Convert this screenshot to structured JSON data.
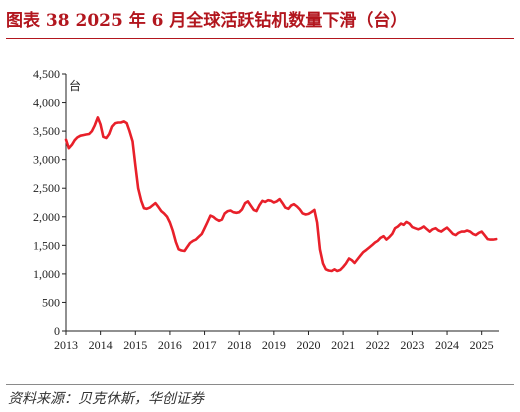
{
  "header": {
    "title": "图表 38   2025 年 6 月全球活跃钻机数量下滑（台）",
    "title_color": "#b2161e"
  },
  "footer": {
    "source": "资料来源：贝克休斯，华创证券"
  },
  "chart_data": {
    "type": "line",
    "unit_label": "台",
    "line_color": "#e8202a",
    "ylim": [
      0,
      4500
    ],
    "yticks": [
      "0",
      "500",
      "1,000",
      "1,500",
      "2,000",
      "2,500",
      "3,000",
      "3,500",
      "4,000",
      "4,500"
    ],
    "xlim": [
      2013,
      2025.5
    ],
    "xticks": [
      "2013",
      "2014",
      "2015",
      "2016",
      "2017",
      "2018",
      "2019",
      "2020",
      "2021",
      "2022",
      "2023",
      "2024",
      "2025"
    ],
    "grid": false,
    "series": [
      {
        "values": [
          [
            2013.0,
            3350
          ],
          [
            2013.08,
            3200
          ],
          [
            2013.17,
            3260
          ],
          [
            2013.25,
            3340
          ],
          [
            2013.33,
            3390
          ],
          [
            2013.42,
            3420
          ],
          [
            2013.5,
            3430
          ],
          [
            2013.58,
            3440
          ],
          [
            2013.67,
            3450
          ],
          [
            2013.75,
            3500
          ],
          [
            2013.83,
            3600
          ],
          [
            2013.92,
            3740
          ],
          [
            2014.0,
            3620
          ],
          [
            2014.08,
            3400
          ],
          [
            2014.17,
            3380
          ],
          [
            2014.25,
            3450
          ],
          [
            2014.33,
            3580
          ],
          [
            2014.42,
            3640
          ],
          [
            2014.5,
            3650
          ],
          [
            2014.58,
            3650
          ],
          [
            2014.67,
            3670
          ],
          [
            2014.75,
            3640
          ],
          [
            2014.83,
            3500
          ],
          [
            2014.92,
            3320
          ],
          [
            2015.0,
            2900
          ],
          [
            2015.08,
            2500
          ],
          [
            2015.17,
            2280
          ],
          [
            2015.25,
            2150
          ],
          [
            2015.33,
            2140
          ],
          [
            2015.42,
            2160
          ],
          [
            2015.5,
            2200
          ],
          [
            2015.58,
            2240
          ],
          [
            2015.67,
            2170
          ],
          [
            2015.75,
            2100
          ],
          [
            2015.83,
            2060
          ],
          [
            2015.92,
            2000
          ],
          [
            2016.0,
            1900
          ],
          [
            2016.08,
            1760
          ],
          [
            2016.17,
            1560
          ],
          [
            2016.25,
            1430
          ],
          [
            2016.33,
            1410
          ],
          [
            2016.42,
            1400
          ],
          [
            2016.5,
            1470
          ],
          [
            2016.58,
            1540
          ],
          [
            2016.67,
            1580
          ],
          [
            2016.75,
            1600
          ],
          [
            2016.83,
            1650
          ],
          [
            2016.92,
            1700
          ],
          [
            2017.0,
            1800
          ],
          [
            2017.08,
            1900
          ],
          [
            2017.17,
            2020
          ],
          [
            2017.25,
            2000
          ],
          [
            2017.33,
            1960
          ],
          [
            2017.42,
            1930
          ],
          [
            2017.5,
            1950
          ],
          [
            2017.58,
            2060
          ],
          [
            2017.67,
            2100
          ],
          [
            2017.75,
            2110
          ],
          [
            2017.83,
            2080
          ],
          [
            2017.92,
            2070
          ],
          [
            2018.0,
            2080
          ],
          [
            2018.08,
            2130
          ],
          [
            2018.17,
            2240
          ],
          [
            2018.25,
            2270
          ],
          [
            2018.33,
            2200
          ],
          [
            2018.42,
            2120
          ],
          [
            2018.5,
            2100
          ],
          [
            2018.58,
            2200
          ],
          [
            2018.67,
            2280
          ],
          [
            2018.75,
            2260
          ],
          [
            2018.83,
            2290
          ],
          [
            2018.92,
            2280
          ],
          [
            2019.0,
            2250
          ],
          [
            2019.08,
            2270
          ],
          [
            2019.17,
            2310
          ],
          [
            2019.25,
            2240
          ],
          [
            2019.33,
            2160
          ],
          [
            2019.42,
            2140
          ],
          [
            2019.5,
            2200
          ],
          [
            2019.58,
            2220
          ],
          [
            2019.67,
            2180
          ],
          [
            2019.75,
            2130
          ],
          [
            2019.83,
            2060
          ],
          [
            2019.92,
            2040
          ],
          [
            2020.0,
            2050
          ],
          [
            2020.08,
            2080
          ],
          [
            2020.17,
            2120
          ],
          [
            2020.25,
            1900
          ],
          [
            2020.33,
            1430
          ],
          [
            2020.42,
            1180
          ],
          [
            2020.5,
            1080
          ],
          [
            2020.58,
            1060
          ],
          [
            2020.67,
            1050
          ],
          [
            2020.75,
            1080
          ],
          [
            2020.83,
            1050
          ],
          [
            2020.92,
            1070
          ],
          [
            2021.0,
            1120
          ],
          [
            2021.08,
            1180
          ],
          [
            2021.17,
            1270
          ],
          [
            2021.25,
            1240
          ],
          [
            2021.33,
            1190
          ],
          [
            2021.42,
            1260
          ],
          [
            2021.5,
            1320
          ],
          [
            2021.58,
            1380
          ],
          [
            2021.67,
            1420
          ],
          [
            2021.75,
            1460
          ],
          [
            2021.83,
            1500
          ],
          [
            2021.92,
            1550
          ],
          [
            2022.0,
            1580
          ],
          [
            2022.08,
            1630
          ],
          [
            2022.17,
            1660
          ],
          [
            2022.25,
            1600
          ],
          [
            2022.33,
            1640
          ],
          [
            2022.42,
            1700
          ],
          [
            2022.5,
            1800
          ],
          [
            2022.58,
            1830
          ],
          [
            2022.67,
            1880
          ],
          [
            2022.75,
            1860
          ],
          [
            2022.83,
            1910
          ],
          [
            2022.92,
            1880
          ],
          [
            2023.0,
            1820
          ],
          [
            2023.08,
            1800
          ],
          [
            2023.17,
            1780
          ],
          [
            2023.25,
            1800
          ],
          [
            2023.33,
            1830
          ],
          [
            2023.42,
            1780
          ],
          [
            2023.5,
            1740
          ],
          [
            2023.58,
            1780
          ],
          [
            2023.67,
            1800
          ],
          [
            2023.75,
            1760
          ],
          [
            2023.83,
            1740
          ],
          [
            2023.92,
            1780
          ],
          [
            2024.0,
            1810
          ],
          [
            2024.08,
            1760
          ],
          [
            2024.17,
            1700
          ],
          [
            2024.25,
            1680
          ],
          [
            2024.33,
            1720
          ],
          [
            2024.42,
            1740
          ],
          [
            2024.5,
            1740
          ],
          [
            2024.58,
            1760
          ],
          [
            2024.67,
            1740
          ],
          [
            2024.75,
            1700
          ],
          [
            2024.83,
            1680
          ],
          [
            2024.92,
            1720
          ],
          [
            2025.0,
            1740
          ],
          [
            2025.08,
            1680
          ],
          [
            2025.17,
            1610
          ],
          [
            2025.25,
            1600
          ],
          [
            2025.33,
            1600
          ],
          [
            2025.42,
            1610
          ]
        ]
      }
    ]
  }
}
